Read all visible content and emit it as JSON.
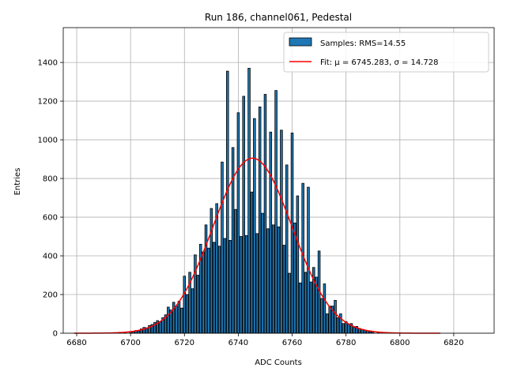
{
  "chart_data": {
    "type": "bar",
    "title": "Run 186, channel061, Pedestal",
    "xlabel": "ADC Counts",
    "ylabel": "Entries",
    "xlim": [
      6675,
      6835
    ],
    "ylim": [
      0,
      1580
    ],
    "xticks": [
      "6680",
      "6700",
      "6720",
      "6740",
      "6760",
      "6780",
      "6800",
      "6820"
    ],
    "yticks": [
      "0",
      "200",
      "400",
      "600",
      "800",
      "1000",
      "1200",
      "1400"
    ],
    "grid": true,
    "legend_position": "top-right",
    "colors": {
      "bar": "#1f77b4",
      "fit": "#ff0000"
    },
    "histogram": {
      "name": "Samples: RMS=14.55",
      "bin_width": 1,
      "bar_width": 0.8,
      "x": [
        6696,
        6698,
        6700,
        6701,
        6702,
        6703,
        6704,
        6705,
        6706,
        6707,
        6708,
        6709,
        6710,
        6711,
        6712,
        6713,
        6714,
        6715,
        6716,
        6717,
        6718,
        6719,
        6720,
        6721,
        6722,
        6723,
        6724,
        6725,
        6726,
        6727,
        6728,
        6729,
        6730,
        6731,
        6732,
        6733,
        6734,
        6735,
        6736,
        6737,
        6738,
        6739,
        6740,
        6741,
        6742,
        6743,
        6744,
        6745,
        6746,
        6747,
        6748,
        6749,
        6750,
        6751,
        6752,
        6753,
        6754,
        6755,
        6756,
        6757,
        6758,
        6759,
        6760,
        6761,
        6762,
        6763,
        6764,
        6765,
        6766,
        6767,
        6768,
        6769,
        6770,
        6771,
        6772,
        6773,
        6774,
        6775,
        6776,
        6777,
        6778,
        6779,
        6780,
        6781,
        6782,
        6783,
        6784,
        6785,
        6786,
        6787,
        6788,
        6789,
        6790,
        6792
      ],
      "values": [
        2,
        4,
        8,
        10,
        14,
        12,
        22,
        30,
        28,
        40,
        45,
        55,
        65,
        60,
        80,
        95,
        135,
        120,
        160,
        140,
        165,
        130,
        295,
        200,
        315,
        230,
        405,
        300,
        460,
        420,
        560,
        440,
        645,
        470,
        670,
        450,
        885,
        490,
        1355,
        480,
        960,
        640,
        1140,
        500,
        1225,
        505,
        1370,
        730,
        1110,
        515,
        1170,
        620,
        1235,
        540,
        1040,
        560,
        1255,
        550,
        1050,
        455,
        870,
        310,
        1035,
        570,
        710,
        260,
        775,
        315,
        755,
        265,
        340,
        290,
        425,
        180,
        255,
        100,
        140,
        140,
        170,
        80,
        100,
        50,
        60,
        45,
        50,
        30,
        35,
        25,
        20,
        15,
        12,
        8,
        8,
        5
      ]
    },
    "fit": {
      "name": "Fit: μ = 6745.283, σ = 14.728",
      "mu": 6745.283,
      "sigma": 14.728,
      "amplitude": 905,
      "x_range": [
        6679,
        6815
      ]
    }
  }
}
